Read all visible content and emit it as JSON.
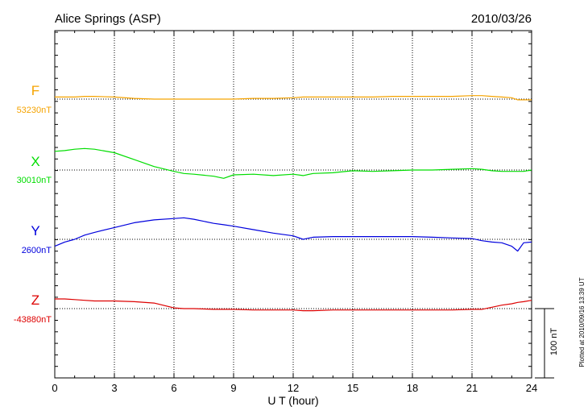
{
  "header": {
    "station": "Alice Springs (ASP)",
    "date": "2010/03/26"
  },
  "footer": {
    "plotted": "Plotted at 2010/09/16 13:39 UT"
  },
  "chart_data": {
    "type": "line",
    "xlabel": "U T (hour)",
    "xlim": [
      0,
      24
    ],
    "x_ticks": [
      0,
      3,
      6,
      9,
      12,
      15,
      18,
      21,
      24
    ],
    "scale_bar": {
      "label": "100 nT",
      "value_nT": 100
    },
    "x": [
      0,
      0.5,
      1,
      1.5,
      2,
      3,
      4,
      5,
      6,
      6.5,
      7,
      8,
      8.5,
      9,
      10,
      11,
      12,
      12.5,
      13,
      14,
      15,
      16,
      17,
      18,
      19,
      20,
      21,
      21.5,
      22,
      22.5,
      23,
      23.3,
      23.6,
      24
    ],
    "series": [
      {
        "name": "F",
        "baseline": "53230nT",
        "color": "#f5a300",
        "values": [
          53233,
          53233,
          53233,
          53234,
          53234,
          53233,
          53231,
          53230,
          53230,
          53230,
          53230,
          53230,
          53230,
          53230,
          53231,
          53231,
          53232,
          53233,
          53233,
          53233,
          53233,
          53233,
          53234,
          53234,
          53234,
          53234,
          53235,
          53235,
          53234,
          53233,
          53232,
          53229,
          53229,
          53229
        ]
      },
      {
        "name": "X",
        "baseline": "30010nT",
        "color": "#00dd00",
        "values": [
          30037,
          30038,
          30040,
          30041,
          30040,
          30035,
          30025,
          30015,
          30008,
          30005,
          30004,
          30001,
          29998,
          30003,
          30004,
          30002,
          30004,
          30002,
          30005,
          30006,
          30009,
          30008,
          30009,
          30010,
          30010,
          30011,
          30012,
          30011,
          30009,
          30008,
          30008,
          30008,
          30008,
          30010
        ]
      },
      {
        "name": "Y",
        "baseline": "2600nT",
        "color": "#0000dd",
        "values": [
          2590,
          2596,
          2600,
          2606,
          2610,
          2617,
          2624,
          2628,
          2630,
          2631,
          2629,
          2623,
          2621,
          2619,
          2614,
          2609,
          2605,
          2600,
          2603,
          2604,
          2604,
          2604,
          2604,
          2604,
          2603,
          2602,
          2601,
          2598,
          2596,
          2595,
          2590,
          2583,
          2595,
          2596
        ]
      },
      {
        "name": "Z",
        "baseline": "-43880nT",
        "color": "#dd0000",
        "values": [
          -43866,
          -43866,
          -43867,
          -43868,
          -43869,
          -43869,
          -43870,
          -43872,
          -43879,
          -43880,
          -43880,
          -43881,
          -43881,
          -43881,
          -43882,
          -43882,
          -43882,
          -43883,
          -43883,
          -43882,
          -43882,
          -43882,
          -43882,
          -43882,
          -43882,
          -43882,
          -43881,
          -43881,
          -43878,
          -43875,
          -43873,
          -43871,
          -43870,
          -43868
        ]
      }
    ]
  }
}
